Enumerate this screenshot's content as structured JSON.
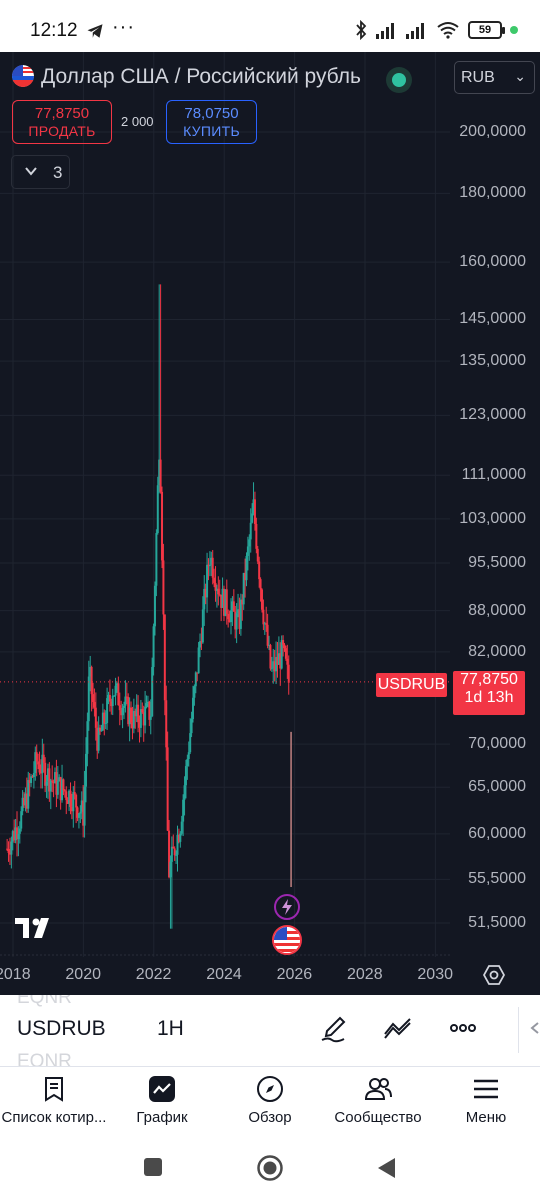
{
  "status_bar": {
    "time": "12:12",
    "overflow": "···",
    "battery": "59",
    "icons": [
      "telegram-icon",
      "bluetooth-icon",
      "signal-icon",
      "signal-icon",
      "wifi-icon",
      "battery-icon"
    ]
  },
  "header": {
    "title": "Доллар США / Российский рубль",
    "currency": "RUB",
    "sell_price": "77,8750",
    "sell_label": "ПРОДАТЬ",
    "spread": "2 000",
    "buy_price": "78,0750",
    "buy_label": "КУПИТЬ",
    "indicators_count": "3"
  },
  "colors": {
    "chart_bg": "#131722",
    "up": "#26a69a",
    "down": "#f23645",
    "buy": "#2962ff"
  },
  "chart_data": {
    "type": "candlestick",
    "symbol": "USDRUB",
    "last_price": "77,8750",
    "countdown": "1d 13h",
    "y_scale": "log",
    "y_ticks": [
      "200,0000",
      "180,0000",
      "160,0000",
      "145,0000",
      "135,0000",
      "123,0000",
      "111,0000",
      "103,0000",
      "95,5000",
      "88,0000",
      "82,0000",
      "70,0000",
      "65,0000",
      "60,0000",
      "55,5000",
      "51,5000"
    ],
    "x_ticks": [
      "2018",
      "2020",
      "2022",
      "2024",
      "2026",
      "2028",
      "2030"
    ],
    "series": [
      {
        "date": "2017-11",
        "price": 58.5
      },
      {
        "date": "2018-04",
        "price": 62
      },
      {
        "date": "2018-09",
        "price": 68
      },
      {
        "date": "2019-03",
        "price": 65.5
      },
      {
        "date": "2019-09",
        "price": 64
      },
      {
        "date": "2020-01",
        "price": 62
      },
      {
        "date": "2020-03",
        "price": 79
      },
      {
        "date": "2020-06",
        "price": 70
      },
      {
        "date": "2020-11",
        "price": 77
      },
      {
        "date": "2021-06",
        "price": 73
      },
      {
        "date": "2021-12",
        "price": 74
      },
      {
        "date": "2022-03",
        "price": 120
      },
      {
        "date": "2022-06",
        "price": 56
      },
      {
        "date": "2022-10",
        "price": 61
      },
      {
        "date": "2023-03",
        "price": 77
      },
      {
        "date": "2023-08",
        "price": 97
      },
      {
        "date": "2023-12",
        "price": 90
      },
      {
        "date": "2024-06",
        "price": 86
      },
      {
        "date": "2024-11",
        "price": 105
      },
      {
        "date": "2025-02",
        "price": 89
      },
      {
        "date": "2025-05",
        "price": 79
      },
      {
        "date": "2025-09",
        "price": 82
      },
      {
        "date": "2025-11",
        "price": 77.875
      }
    ],
    "high_low": {
      "max_price": 154,
      "max_date": "2022-03",
      "min_price": 51,
      "min_date": "2022-07"
    }
  },
  "toolbar": {
    "symbol": "USDRUB",
    "interval": "1H",
    "ghost_above": "EQNR",
    "ghost_below": "EQNR"
  },
  "nav": [
    {
      "label": "Список котир...",
      "icon": "watchlist-icon"
    },
    {
      "label": "График",
      "icon": "chart-icon"
    },
    {
      "label": "Обзор",
      "icon": "compass-icon"
    },
    {
      "label": "Сообщество",
      "icon": "community-icon"
    },
    {
      "label": "Меню",
      "icon": "menu-icon"
    }
  ]
}
